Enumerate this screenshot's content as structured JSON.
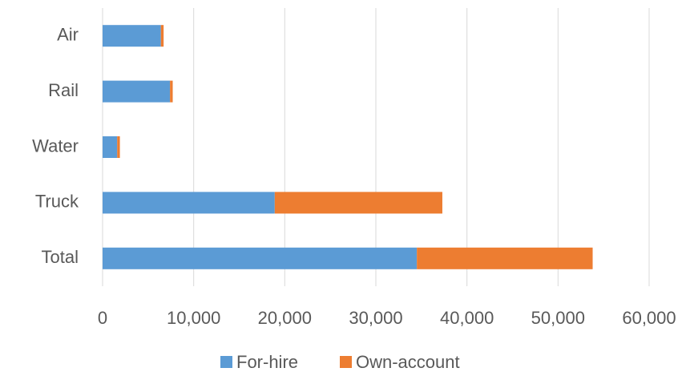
{
  "chart_data": {
    "type": "stacked_bar",
    "orientation": "horizontal",
    "categories": [
      "Air",
      "Rail",
      "Water",
      "Truck",
      "Total"
    ],
    "series": [
      {
        "name": "For-hire",
        "color": "#5b9bd5",
        "values": [
          6400,
          7400,
          1600,
          18900,
          34500
        ]
      },
      {
        "name": "Own-account",
        "color": "#ed7d31",
        "values": [
          300,
          300,
          300,
          18400,
          19300
        ]
      }
    ],
    "xlim": [
      0,
      60000
    ],
    "xticks": [
      0,
      {
        "value": 10000,
        "label": "10,000"
      },
      {
        "value": 20000,
        "label": "20,000"
      },
      {
        "value": 30000,
        "label": "30,000"
      },
      {
        "value": 40000,
        "label": "40,000"
      },
      {
        "value": 50000,
        "label": "50,000"
      },
      {
        "value": 60000,
        "label": "60,000"
      }
    ],
    "grid": true,
    "legend": "bottom"
  }
}
